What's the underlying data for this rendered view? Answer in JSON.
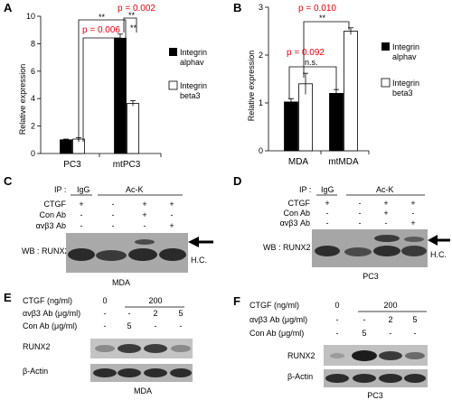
{
  "chart_data": [
    {
      "panel": "A",
      "type": "bar",
      "categories": [
        "PC3",
        "mtPC3"
      ],
      "series": [
        {
          "name": "Integrin alphav",
          "color": "#000000",
          "values": [
            1.0,
            8.4
          ],
          "errors": [
            0.05,
            0.3
          ]
        },
        {
          "name": "Integrin beta3",
          "color": "#ffffff",
          "values": [
            1.05,
            3.65
          ],
          "errors": [
            0.1,
            0.2
          ]
        }
      ],
      "ylabel": "Relative expression",
      "ylim": [
        0,
        10
      ],
      "yticks": [
        "0",
        "2",
        "4",
        "6",
        "8",
        "10"
      ],
      "annotations": [
        {
          "text": "p = 0.002",
          "color": "#e8000b"
        },
        {
          "text": "**"
        },
        {
          "text": "p = 0.006",
          "color": "#e8000b"
        },
        {
          "text": "**"
        },
        {
          "text": "**"
        }
      ],
      "legend_labels": [
        [
          "Integrin",
          "alphav"
        ],
        [
          "Integrin",
          "beta3"
        ]
      ]
    },
    {
      "panel": "B",
      "type": "bar",
      "categories": [
        "MDA",
        "mtMDA"
      ],
      "series": [
        {
          "name": "Integrin alphav",
          "color": "#000000",
          "values": [
            1.02,
            1.2
          ],
          "errors": [
            0.07,
            0.08
          ]
        },
        {
          "name": "Integrin beta3",
          "color": "#ffffff",
          "values": [
            1.4,
            2.5
          ],
          "errors": [
            0.22,
            0.07
          ]
        }
      ],
      "ylabel": "Relative expression",
      "ylim": [
        0,
        3
      ],
      "yticks": [
        "0",
        "1",
        "2",
        "3"
      ],
      "annotations": [
        {
          "text": "p = 0.010",
          "color": "#e8000b"
        },
        {
          "text": "**"
        },
        {
          "text": "p = 0.092",
          "color": "#e8000b"
        },
        {
          "text": "n.s."
        }
      ],
      "legend_labels": [
        [
          "Integrin",
          "alphav"
        ],
        [
          "Integrin",
          "beta3"
        ]
      ]
    }
  ],
  "panels": {
    "a": "A",
    "b": "B",
    "c": "C",
    "d": "D",
    "e": "E",
    "f": "F"
  },
  "ip_blots": {
    "c": {
      "ip": "IP :",
      "igg": "IgG",
      "ack": "Ac-K",
      "rows": [
        {
          "label": "CTGF",
          "signs": [
            "+",
            "-",
            "+",
            "+"
          ]
        },
        {
          "label": "Con Ab",
          "signs": [
            "-",
            "-",
            "+",
            "-"
          ]
        },
        {
          "label": "αvβ3 Ab",
          "signs": [
            "-",
            "-",
            "-",
            "+"
          ]
        }
      ],
      "wb": "WB : RUNX2",
      "hc": "H.C.",
      "cell": "MDA"
    },
    "d": {
      "ip": "IP :",
      "igg": "IgG",
      "ack": "Ac-K",
      "rows": [
        {
          "label": "CTGF",
          "signs": [
            "+",
            "-",
            "+",
            "+"
          ]
        },
        {
          "label": "Con Ab",
          "signs": [
            "-",
            "-",
            "+",
            "-"
          ]
        },
        {
          "label": "αvβ3 Ab",
          "signs": [
            "-",
            "-",
            "-",
            "+"
          ]
        }
      ],
      "wb": "WB : RUNX2",
      "hc": "H.C.",
      "cell": "PC3"
    }
  },
  "dose_blots": {
    "e": {
      "rows": [
        {
          "label": "CTGF (ng/ml)",
          "signs": [
            "0",
            "",
            "",
            ""
          ]
        },
        {
          "label": "αvβ3 Ab (μg/ml)",
          "signs": [
            "-",
            "-",
            "2",
            "5"
          ]
        },
        {
          "label": "Con Ab (μg/ml)",
          "signs": [
            "-",
            "5",
            "-",
            "-"
          ]
        }
      ],
      "dose": "200",
      "runx2": "RUNX2",
      "actin": "β-Actin",
      "cell": "MDA"
    },
    "f": {
      "rows": [
        {
          "label": "CTGF (ng/ml)",
          "signs": [
            "0",
            "",
            "",
            ""
          ]
        },
        {
          "label": "αvβ3 Ab (μg/ml)",
          "signs": [
            "-",
            "-",
            "2",
            "5"
          ]
        },
        {
          "label": "Con Ab (μg/ml)",
          "signs": [
            "-",
            "5",
            "-",
            "-"
          ]
        }
      ],
      "dose": "200",
      "runx2": "RUNX2",
      "actin": "β-Actin",
      "cell": "PC3"
    }
  }
}
